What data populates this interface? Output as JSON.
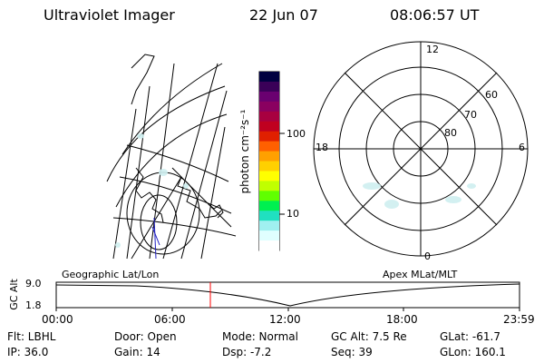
{
  "header": {
    "title": "Ultraviolet Imager",
    "date": "22 Jun 07",
    "time": "08:06:57 UT"
  },
  "colorbar": {
    "unit_label": "photon cm⁻²s⁻¹",
    "ticks": [
      "100",
      "10"
    ],
    "colors": [
      "#000040",
      "#3a0058",
      "#6a0070",
      "#8a0060",
      "#a80040",
      "#c00020",
      "#e02000",
      "#ff6000",
      "#ffa000",
      "#ffd000",
      "#ffff00",
      "#c0ff00",
      "#60ff00",
      "#00f050",
      "#20e0c0",
      "#a0f0f0",
      "#e0ffff",
      "#ffffff"
    ]
  },
  "polar_plot": {
    "labels": {
      "top": "12",
      "bottom": "0",
      "left": "18",
      "right": "6",
      "ring_60": "60",
      "ring_70": "70",
      "ring_80": "80"
    }
  },
  "timeline": {
    "left_title": "Geographic Lat/Lon",
    "right_title": "Apex MLat/MLT",
    "axis_label": "GC Alt",
    "y_ticks": [
      "9.0",
      "1.8"
    ],
    "x_ticks": [
      "00:00",
      "06:00",
      "12:00",
      "18:00",
      "23:59"
    ],
    "marker_color": "#ff0000"
  },
  "status": {
    "flt": "Flt: LBHL",
    "ip": "IP: 36.0",
    "door": "Door: Open",
    "gain": "Gain: 14",
    "mode": "Mode: Normal",
    "dsp": "Dsp:    -7.2",
    "gc_alt": "GC Alt: 7.5 Re",
    "seq": "Seq: 39",
    "glat": "GLat: -61.7",
    "glon": "GLon: 160.1"
  }
}
